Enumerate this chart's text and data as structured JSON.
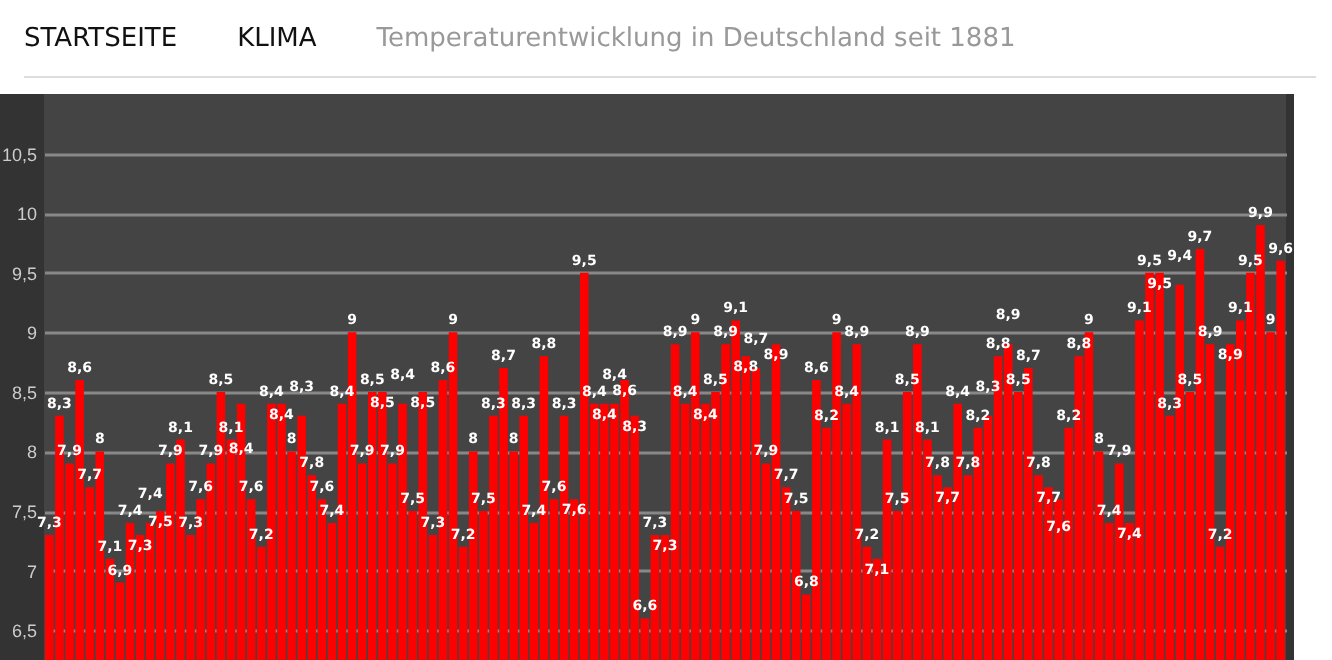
{
  "chart_data": {
    "type": "bar",
    "title": "Temperaturentwicklung in Deutschland seit 1881",
    "annotations": [
      "STARTSEITE",
      "KLIMA"
    ],
    "categories": [
      null,
      null,
      null,
      null,
      null,
      null,
      null,
      null,
      null,
      null,
      null,
      null,
      null,
      null,
      null,
      null,
      null,
      null,
      null,
      null,
      null,
      null,
      null,
      null,
      null,
      null,
      null,
      null,
      null,
      null,
      null,
      null,
      null,
      null,
      null,
      null,
      null,
      null,
      null,
      null,
      null,
      null,
      null,
      null,
      null,
      null,
      null,
      null,
      null,
      null,
      null,
      null,
      null,
      null,
      null,
      null,
      null,
      null,
      null,
      null,
      null,
      null,
      null,
      null,
      null,
      null,
      null,
      null,
      null,
      null,
      null,
      null,
      null,
      null,
      null,
      null,
      null,
      null,
      null,
      null,
      null,
      null,
      null,
      null,
      null,
      null,
      null,
      null,
      null,
      null,
      null,
      null,
      null,
      null,
      null,
      null,
      null,
      null,
      null,
      null,
      null,
      null,
      null,
      null,
      null,
      null,
      null,
      null,
      null,
      null,
      null,
      null,
      null,
      null,
      null,
      null,
      null,
      null,
      null,
      null,
      null,
      null,
      null
    ],
    "values": [
      7.3,
      8.3,
      7.9,
      8.6,
      7.7,
      8,
      7.1,
      6.9,
      7.4,
      7.3,
      7.4,
      7.5,
      7.9,
      8.1,
      7.3,
      7.6,
      7.9,
      8.5,
      8.1,
      8.4,
      7.6,
      7.2,
      8.4,
      8.4,
      8,
      8.3,
      7.8,
      7.6,
      7.4,
      8.4,
      9,
      7.9,
      8.5,
      8.5,
      7.9,
      8.4,
      7.5,
      8.5,
      7.3,
      8.6,
      9,
      7.2,
      8,
      7.5,
      8.3,
      8.7,
      8,
      8.3,
      7.4,
      8.8,
      7.6,
      8.3,
      7.6,
      9.5,
      8.4,
      8.4,
      8.4,
      8.6,
      8.3,
      6.6,
      7.3,
      7.3,
      8.9,
      8.4,
      9,
      8.4,
      8.5,
      8.9,
      9.1,
      8.8,
      8.7,
      7.9,
      8.9,
      7.7,
      7.5,
      6.8,
      8.6,
      8.2,
      9,
      8.4,
      8.9,
      7.2,
      7.1,
      8.1,
      7.5,
      8.5,
      8.9,
      8.1,
      7.8,
      7.7,
      8.4,
      7.8,
      8.2,
      8.3,
      8.8,
      8.9,
      8.5,
      8.7,
      7.8,
      7.7,
      7.6,
      8.2,
      8.8,
      9,
      8,
      7.4,
      7.9,
      7.4,
      9.1,
      9.5,
      9.5,
      8.3,
      9.4,
      8.5,
      9.7,
      8.9,
      7.2,
      8.9,
      9.1,
      9.5,
      9.9,
      9,
      9.6
    ],
    "value_labels": [
      "7,3",
      "8,3",
      "7,9",
      "8,6",
      "7,7",
      "8",
      "7,1",
      "6,9",
      "7,4",
      "7,3",
      "7,4",
      "7,5",
      "7,9",
      "8,1",
      "7,3",
      "7,6",
      "7,9",
      "8,5",
      "8,1",
      "8,4",
      "7,6",
      "7,2",
      "8,4",
      "8,4",
      "8",
      "8,3",
      "7,8",
      "7,6",
      "7,4",
      "8,4",
      "9",
      "7,9",
      "8,5",
      "8,5",
      "7,9",
      "8,4",
      "7,5",
      "8,5",
      "7,3",
      "8,6",
      "9",
      "7,2",
      "8",
      "7,5",
      "8,3",
      "8,7",
      "8",
      "8,3",
      "7,4",
      "8,8",
      "7,6",
      "8,3",
      "7,6",
      "9,5",
      "8,4",
      "8,4",
      "8,4",
      "8,6",
      "8,3",
      "6,6",
      "7,3",
      "7,3",
      "8,9",
      "8,4",
      "9",
      "8,4",
      "8,5",
      "8,9",
      "9,1",
      "8,8",
      "8,7",
      "7,9",
      "8,9",
      "7,7",
      "7,5",
      "6,8",
      "8,6",
      "8,2",
      "9",
      "8,4",
      "8,9",
      "7,2",
      "7,1",
      "8,1",
      "7,5",
      "8,5",
      "8,9",
      "8,1",
      "7,8",
      "7,7",
      "8,4",
      "7,8",
      "8,2",
      "8,3",
      "8,8",
      "8,9",
      "8,5",
      "8,7",
      "7,8",
      "7,7",
      "7,6",
      "8,2",
      "8,8",
      "9",
      "8",
      "7,4",
      "7,9",
      "7,4",
      "9,1",
      "9,5",
      "9,5",
      "8,3",
      "9,4",
      "8,5",
      "9,7",
      "8,9",
      "7,2",
      "8,9",
      "9,1",
      "9,5",
      "9,9",
      "9",
      "9,6"
    ],
    "color": "#ff0000",
    "ylim": [
      6.25,
      11
    ],
    "yticks": [
      {
        "value": 6.5,
        "label": "6,5"
      },
      7,
      {
        "value": 7.5,
        "label": "7,5"
      },
      8,
      {
        "value": 8.5,
        "label": "8,5"
      },
      9,
      {
        "value": 9.5,
        "label": "9,5"
      },
      10,
      {
        "value": 10.5,
        "label": "10,5"
      }
    ],
    "grid": "y",
    "tick_labels": "y"
  }
}
